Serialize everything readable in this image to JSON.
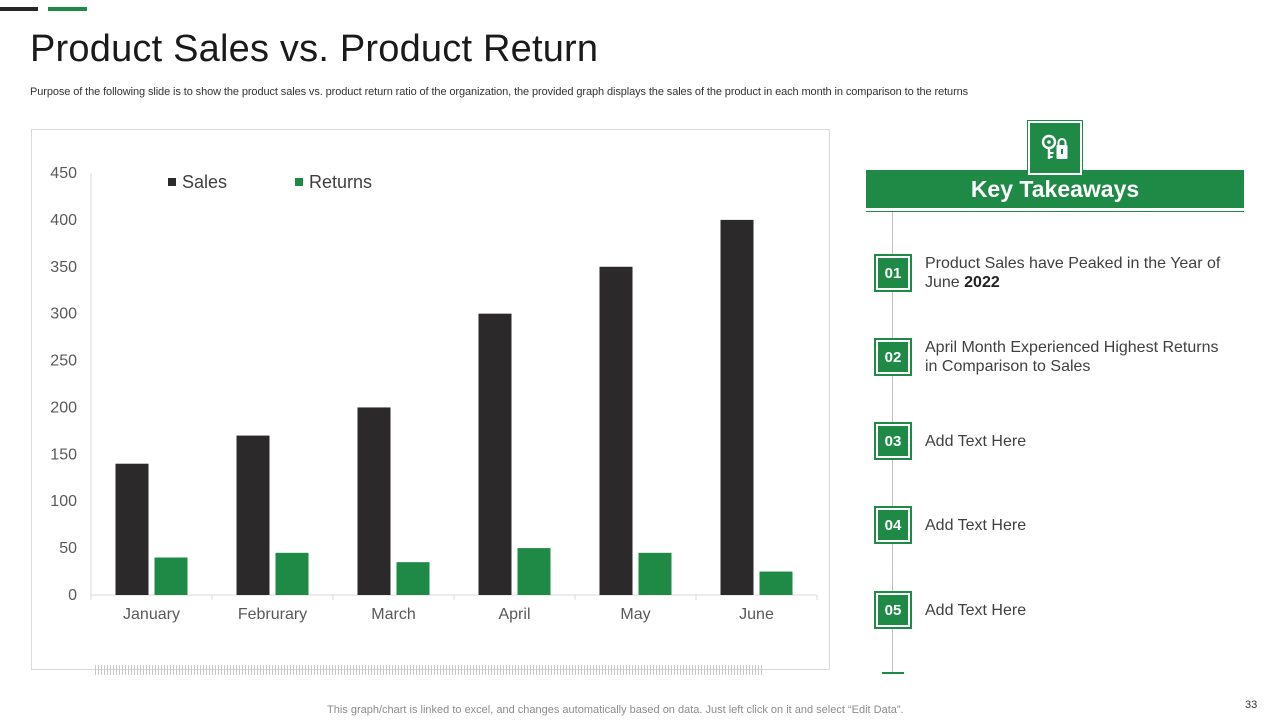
{
  "slide": {
    "title": "Product Sales vs. Product Return",
    "subtitle": "Purpose of the following slide is to show the product sales vs. product return ratio of the organization, the provided graph displays the sales of the product in each month in comparison to the returns",
    "footer_note": "This graph/chart is linked to excel,  and changes automatically based on data. Just left click on it and select “Edit Data”.",
    "page_number": "33",
    "accent_color": "#1e8a46",
    "dark_color": "#262626"
  },
  "chart_data": {
    "type": "bar",
    "categories": [
      "January",
      "Februrary",
      "March",
      "April",
      "May",
      "June"
    ],
    "series": [
      {
        "name": "Sales",
        "values": [
          140,
          170,
          200,
          300,
          350,
          400
        ],
        "color": "#2b2929"
      },
      {
        "name": "Returns",
        "values": [
          40,
          45,
          35,
          50,
          45,
          25
        ],
        "color": "#1e8a46"
      }
    ],
    "ylim": [
      0,
      450
    ],
    "yticks": [
      0,
      50,
      100,
      150,
      200,
      250,
      300,
      350,
      400,
      450
    ],
    "legend": "top-left",
    "grid": false,
    "title": "",
    "xlabel": "",
    "ylabel": ""
  },
  "takeaways": {
    "header": "Key Takeaways",
    "icon": "key-lock-icon",
    "items": [
      {
        "number": "01",
        "text": "Product Sales have Peaked in the Year of June ",
        "bold": "2022"
      },
      {
        "number": "02",
        "text": "April Month  Experienced Highest Returns in Comparison to Sales"
      },
      {
        "number": "03",
        "text": "Add Text Here"
      },
      {
        "number": "04",
        "text": "Add Text Here"
      },
      {
        "number": "05",
        "text": "Add Text Here"
      }
    ]
  }
}
